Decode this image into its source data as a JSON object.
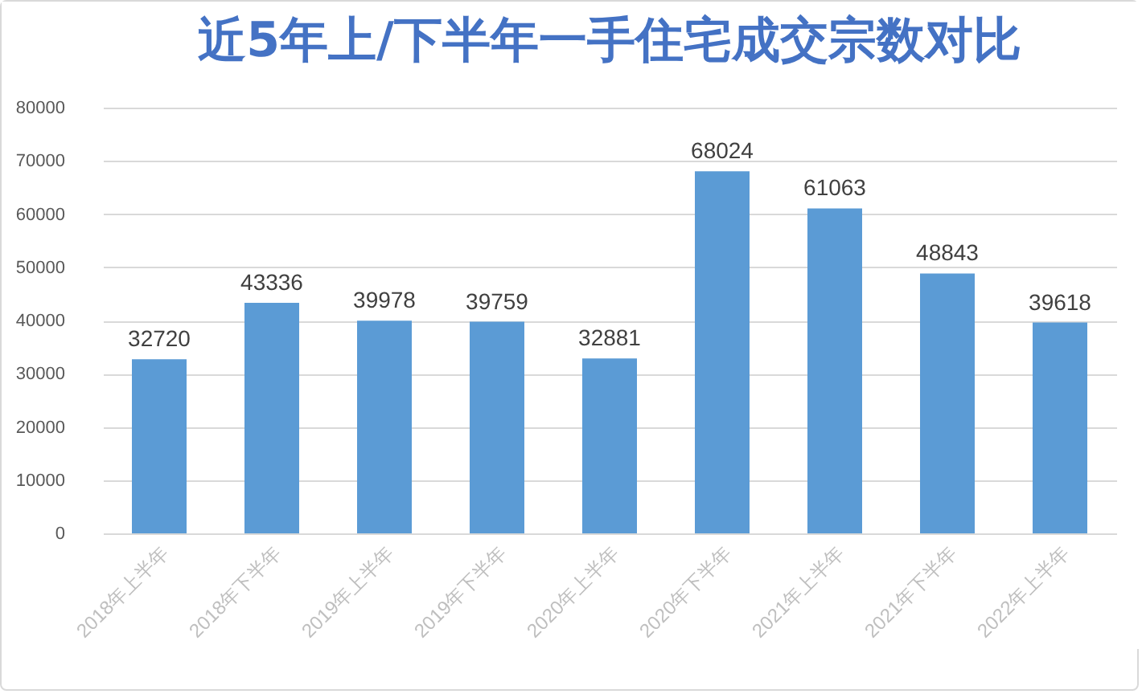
{
  "chart_data": {
    "type": "bar",
    "title": "近5年上/下半年一手住宅成交宗数对比",
    "categories": [
      "2018年上半年",
      "2018年下半年",
      "2019年上半年",
      "2019年下半年",
      "2020年上半年",
      "2020年下半年",
      "2021年上半年",
      "2021年下半年",
      "2022年上半年"
    ],
    "values": [
      32720,
      43336,
      39978,
      39759,
      32881,
      68024,
      61063,
      48843,
      39618
    ],
    "color": "#5b9bd5",
    "ylim": [
      0,
      80000
    ],
    "yticks": [
      0,
      10000,
      20000,
      30000,
      40000,
      50000,
      60000,
      70000,
      80000
    ],
    "grid": "y",
    "data_labels": true
  }
}
